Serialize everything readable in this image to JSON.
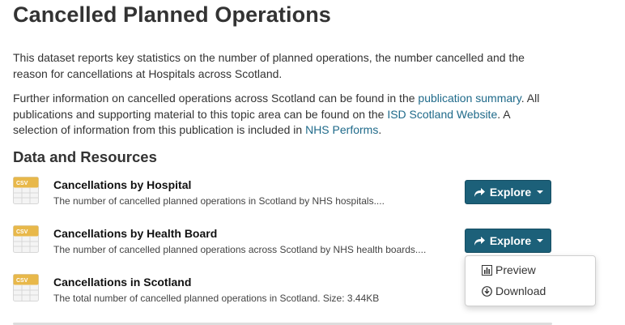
{
  "page": {
    "title": "Cancelled Planned Operations"
  },
  "intro": {
    "p1": "This dataset reports key statistics on the number of planned operations, the number cancelled and the reason for cancellations at Hospitals across Scotland.",
    "p2_a": "Further information on cancelled operations across Scotland can be found in the ",
    "p2_link1": "publication summary",
    "p2_b": ". All publications and supporting material to this topic area can be found on the ",
    "p2_link2": "ISD Scotland Website",
    "p2_c": ". A selection of information from this publication is included in ",
    "p2_link3": "NHS Performs",
    "p2_d": "."
  },
  "resources_section": {
    "title": "Data and Resources",
    "items": [
      {
        "format": "CSV",
        "title": "Cancellations by Hospital",
        "description": "The number of cancelled planned operations in Scotland by NHS hospitals....",
        "button": "Explore"
      },
      {
        "format": "CSV",
        "title": "Cancellations by Health Board",
        "description": "The number of cancelled planned operations across Scotland by NHS health boards....",
        "button": "Explore"
      },
      {
        "format": "CSV",
        "title": "Cancellations in Scotland",
        "description": "The total number of cancelled planned operations in Scotland. Size: 3.44KB"
      }
    ]
  },
  "dropdown": {
    "items": [
      {
        "label": "Preview",
        "icon": "bar-chart-icon"
      },
      {
        "label": "Download",
        "icon": "download-circle-icon"
      }
    ]
  },
  "colors": {
    "button_bg": "#1c6079",
    "link": "#1f6a8a",
    "csv_icon": "#e8b84a"
  }
}
